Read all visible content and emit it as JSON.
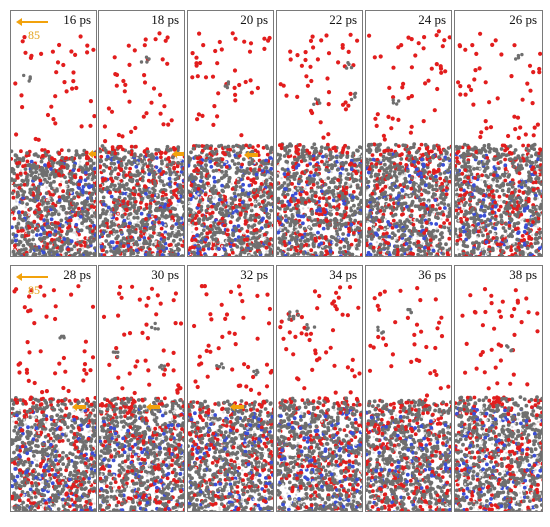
{
  "figure": {
    "rows": [
      {
        "scale_text": "85",
        "panels": [
          {
            "time": "16 ps"
          },
          {
            "time": "18 ps"
          },
          {
            "time": "20 ps"
          },
          {
            "time": "22 ps"
          },
          {
            "time": "24 ps"
          },
          {
            "time": "26 ps"
          }
        ]
      },
      {
        "scale_text": "85",
        "panels": [
          {
            "time": "28 ps"
          },
          {
            "time": "30 ps"
          },
          {
            "time": "32 ps"
          },
          {
            "time": "34 ps"
          },
          {
            "time": "36 ps"
          },
          {
            "time": "38 ps"
          }
        ]
      }
    ],
    "colors": {
      "oxygen": "#e21d1d",
      "carbon": "#6f6f6f",
      "nitrogen": "#3b4fd6",
      "hydrogen": "#d9d9d9",
      "arrow": "#f2a20c"
    }
  }
}
